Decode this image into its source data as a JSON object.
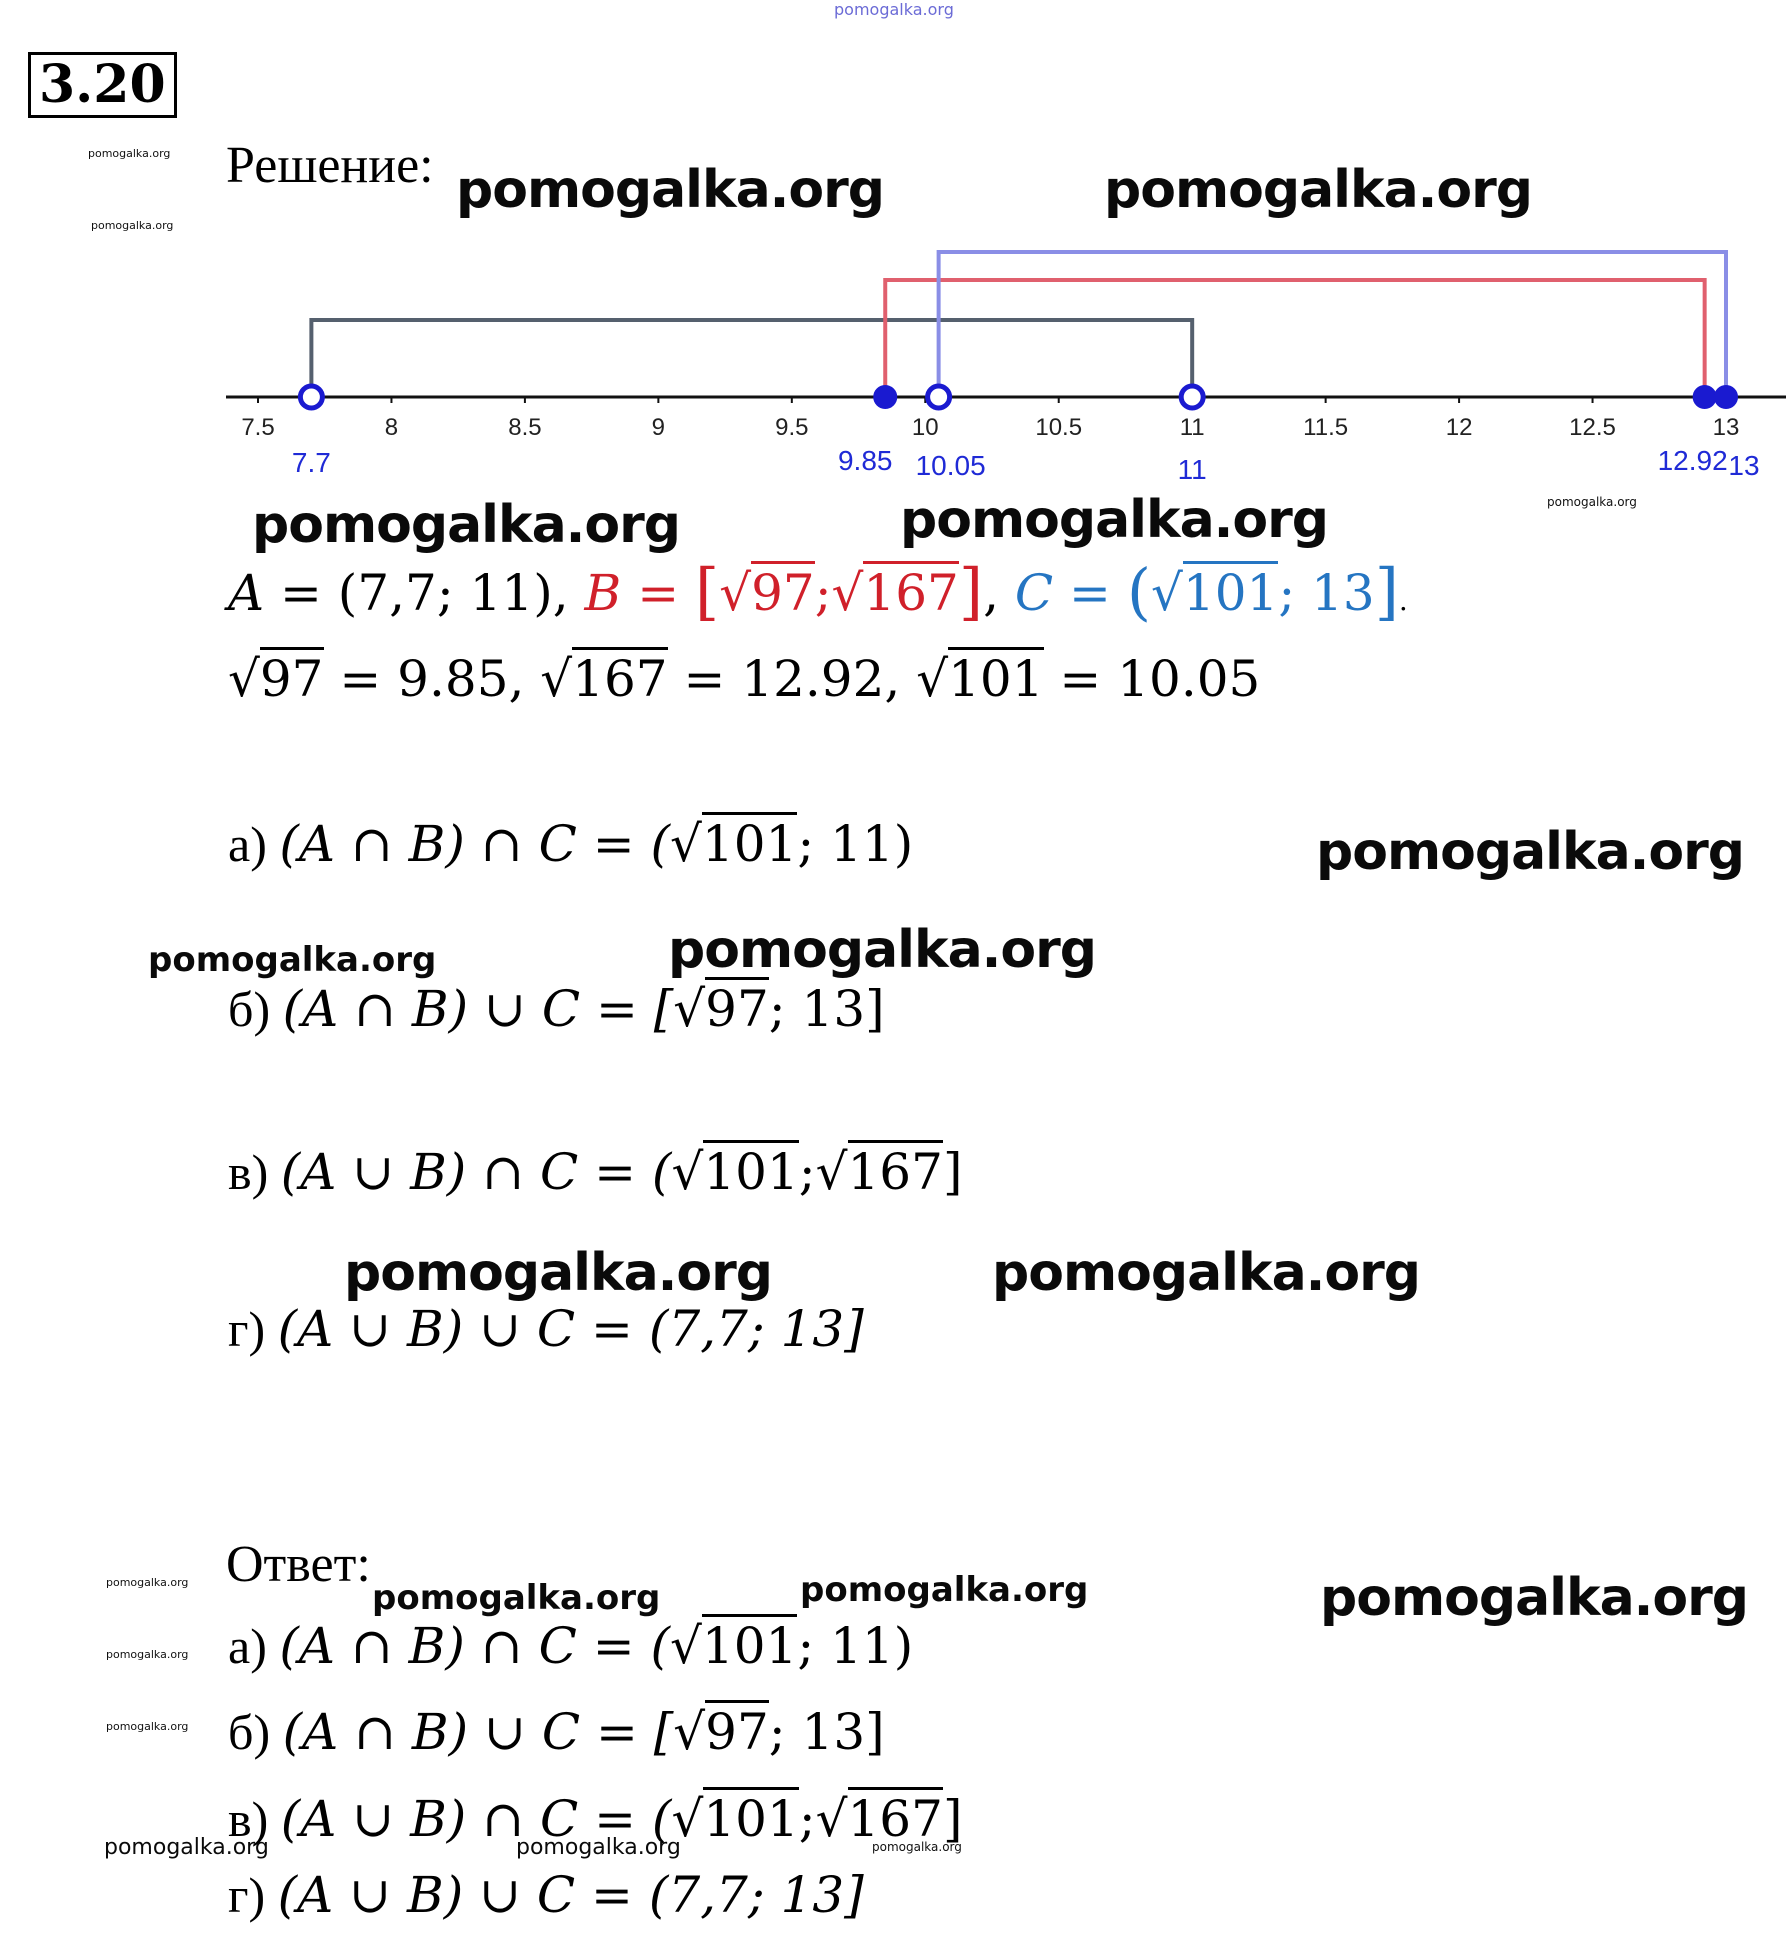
{
  "watermark_text": "pomogalka.org",
  "problem_number": "3.20",
  "solution_label": "Решение:",
  "answer_label": "Ответ:",
  "chart_data": {
    "type": "number-line",
    "ticks": [
      "7.5",
      "8",
      "8.5",
      "9",
      "9.5",
      "10",
      "10.5",
      "11",
      "11.5",
      "12",
      "12.5",
      "13"
    ],
    "tick_values": [
      7.5,
      8,
      8.5,
      9,
      9.5,
      10,
      10.5,
      11,
      11.5,
      12,
      12.5,
      13
    ],
    "xlim": [
      7.15,
      13.2
    ],
    "point_labels": [
      {
        "text": "7.7",
        "value": 7.7,
        "filled": false
      },
      {
        "text": "9.85",
        "value": 9.85,
        "filled": true
      },
      {
        "text": "10.05",
        "value": 10.05,
        "filled": false
      },
      {
        "text": "11",
        "value": 11,
        "filled": false
      },
      {
        "text": "12.92",
        "value": 12.92,
        "filled": true
      },
      {
        "text": "13",
        "value": 13,
        "filled": true
      }
    ],
    "intervals": [
      {
        "set": "A",
        "from": 7.7,
        "to": 11,
        "color": "#55606e"
      },
      {
        "set": "B",
        "from": 9.85,
        "to": 12.92,
        "color": "#e0606e"
      },
      {
        "set": "C",
        "from": 10.05,
        "to": 13,
        "color": "#8a8ee6"
      }
    ]
  },
  "definitions": {
    "A": {
      "name": "A",
      "eq": " = ",
      "lb": "(",
      "v1": "7,7",
      "sep": "; ",
      "v2": "11",
      "rb": ")"
    },
    "comma": ",",
    "B": {
      "name": "B",
      "eq": " = ",
      "lb": "[",
      "r1": "97",
      "sep": ";",
      "r2": "167",
      "rb": "]"
    },
    "comma2": ",",
    "C": {
      "name": "C",
      "eq": " = ",
      "lb": "(",
      "r1": "101",
      "sep": "; ",
      "v2": "13",
      "rb": "]"
    },
    "dot": "."
  },
  "roots": {
    "r1": "97",
    "v1": " = 9.85, ",
    "r2": "167",
    "v2": " = 12.92, ",
    "r3": "101",
    "v3": " = 10.05"
  },
  "items": {
    "a": {
      "label": "а) ",
      "expr": "(A ∩ B) ∩ C = (",
      "root": "101",
      "tail": "; 11)"
    },
    "b": {
      "label": "б) ",
      "expr": "(A ∩ B) ∪ C = [",
      "root": "97",
      "tail": "; 13]"
    },
    "v": {
      "label": "в) ",
      "expr": "(A ∪ B) ∩ C = (",
      "root": "101",
      "mid": ";",
      "root2": "167",
      "tail": "]"
    },
    "g": {
      "label": "г) ",
      "expr": "(A ∪ B) ∪ C = (7,7; 13]"
    }
  }
}
